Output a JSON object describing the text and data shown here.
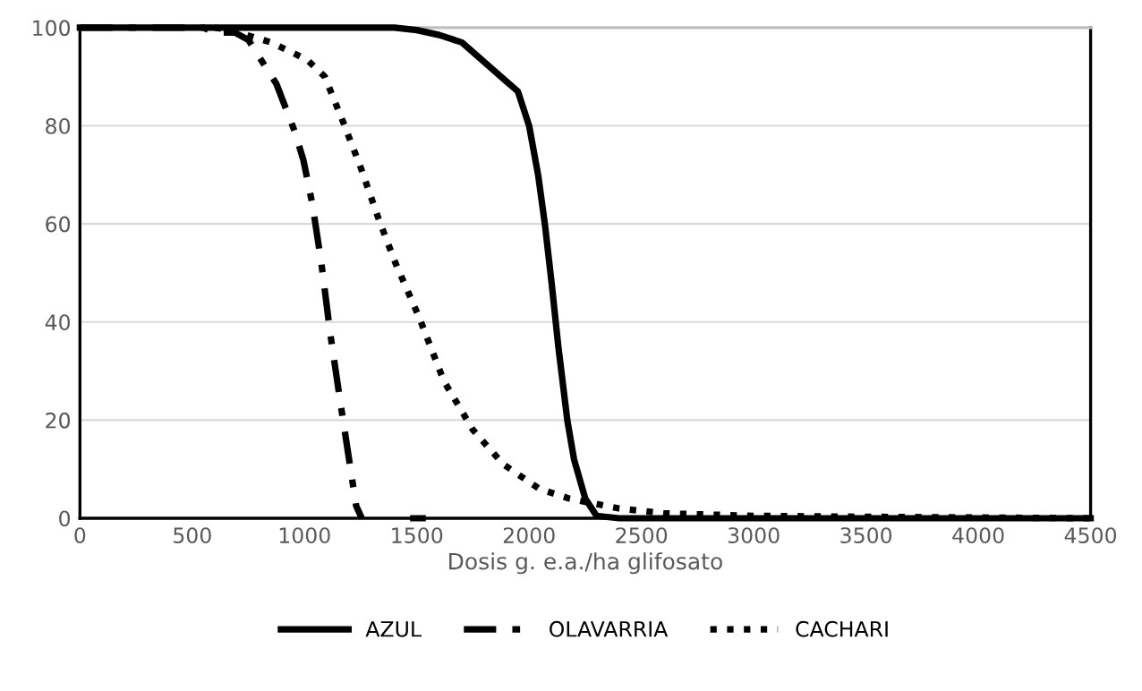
{
  "chart_data": {
    "type": "line",
    "xlabel": "Dosis g. e.a./ha glifosato",
    "xlim": [
      0,
      4500
    ],
    "xticks": [
      0,
      500,
      1000,
      1500,
      2000,
      2500,
      3000,
      3500,
      4000,
      4500
    ],
    "ylim": [
      0,
      100
    ],
    "yticks": [
      0,
      20,
      40,
      60,
      80,
      100
    ],
    "grid": "y",
    "legend": "bottom",
    "marker": "none",
    "series": [
      {
        "name": "AZUL",
        "color": "#000000",
        "line_style": "solid",
        "x": [
          0,
          1400,
          1500,
          1600,
          1700,
          1800,
          1900,
          1950,
          2000,
          2040,
          2070,
          2100,
          2130,
          2170,
          2200,
          2250,
          2300,
          2400,
          4500
        ],
        "values": [
          100,
          100,
          99.5,
          98.5,
          97,
          93,
          89,
          87,
          80,
          70,
          60,
          48,
          35,
          20,
          12,
          4,
          0.5,
          0,
          0
        ]
      },
      {
        "name": "OLAVARRIA",
        "color": "#000000",
        "line_style": "dashdot",
        "x": [
          0,
          550,
          600,
          690,
          750,
          875,
          955,
          995,
          1035,
          1075,
          1115,
          1155,
          1195,
          1230,
          1255,
          1350,
          1470,
          1540
        ],
        "values": [
          100,
          100,
          99,
          99,
          97.5,
          88.5,
          79,
          73,
          64,
          52,
          37.5,
          25,
          13,
          2.5,
          0,
          null,
          0,
          0
        ]
      },
      {
        "name": "CACHARI",
        "color": "#000000",
        "line_style": "dotted",
        "x": [
          600,
          670,
          850,
          1010,
          1090,
          1170,
          1250,
          1330,
          1405,
          1510,
          1620,
          1750,
          1885,
          2045,
          2180,
          2400,
          2600,
          3000,
          3500,
          4500
        ],
        "values": [
          100,
          99.5,
          97,
          93.5,
          90,
          81,
          71.5,
          61,
          52,
          41,
          28,
          18,
          11,
          6,
          4,
          2,
          1,
          0.5,
          0.3,
          0
        ]
      }
    ]
  }
}
